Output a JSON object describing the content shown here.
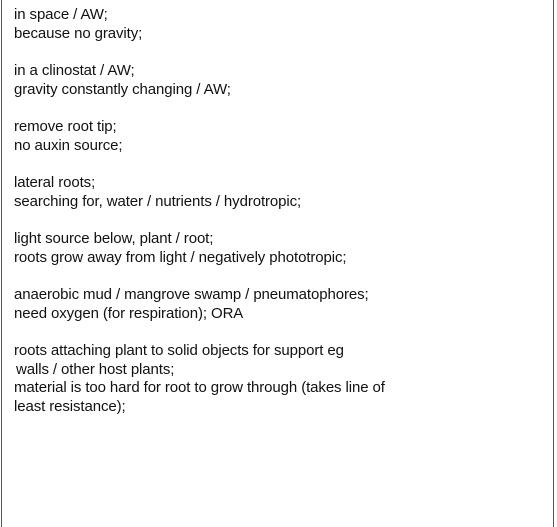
{
  "answers": [
    {
      "lines": [
        "in space / AW;",
        "because no gravity;"
      ]
    },
    {
      "lines": [
        "in a clinostat / AW;",
        "gravity constantly changing / AW;"
      ]
    },
    {
      "lines": [
        "remove root tip;",
        "no auxin source;"
      ]
    },
    {
      "lines": [
        "lateral roots;",
        "searching for, water / nutrients / hydrotropic;"
      ]
    },
    {
      "lines": [
        "light source below, plant / root;",
        "roots grow away from light / negatively phototropic;"
      ]
    },
    {
      "lines": [
        "anaerobic mud / mangrove swamp / pneumatophores;",
        "need oxygen (for respiration); ORA"
      ]
    },
    {
      "lines": [
        "roots attaching plant to solid objects for support eg",
        "walls / other host plants;",
        "material is too hard for root to grow through (takes line of",
        "least resistance);"
      ]
    }
  ]
}
